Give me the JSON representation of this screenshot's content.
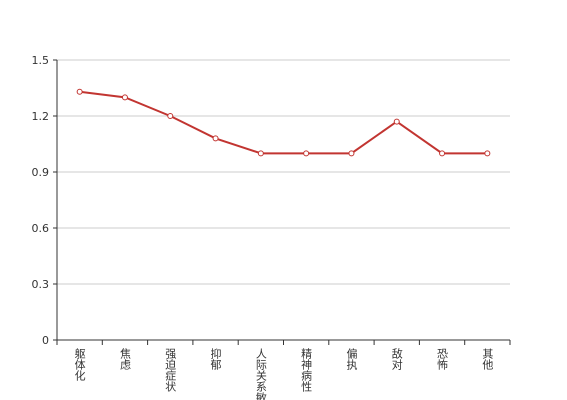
{
  "chart_data": {
    "type": "line",
    "categories": [
      "躯体化",
      "焦虑",
      "强迫症状",
      "抑郁",
      "人际关系敏感",
      "精神病性",
      "偏执",
      "敌对",
      "恐怖",
      "其他"
    ],
    "values": [
      1.33,
      1.3,
      1.2,
      1.08,
      1.0,
      1.0,
      1.0,
      1.17,
      1.0,
      1.0
    ],
    "color": "#c23531",
    "ylim": [
      0,
      1.5
    ],
    "yticks": [
      0,
      0.3,
      0.6,
      0.9,
      1.2,
      1.5
    ],
    "grid": true
  }
}
